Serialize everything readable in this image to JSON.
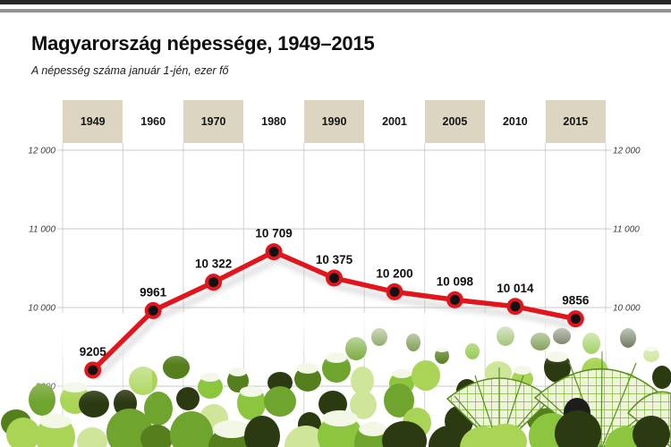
{
  "header": {
    "title": "Magyarország népessége, 1949–2015",
    "subtitle": "A népesség száma január 1-jén, ezer fő"
  },
  "chart_data": {
    "type": "line",
    "title": "Magyarország népessége, 1949–2015",
    "subtitle": "A népesség száma január 1-jén, ezer fő",
    "categories": [
      "1949",
      "1960",
      "1970",
      "1980",
      "1990",
      "2001",
      "2005",
      "2010",
      "2015"
    ],
    "values": [
      9205,
      9961,
      10322,
      10709,
      10375,
      10200,
      10098,
      10014,
      9856
    ],
    "value_labels": [
      "9205",
      "9961",
      "10 322",
      "10 709",
      "10 375",
      "10 200",
      "10 098",
      "10 014",
      "9856"
    ],
    "unit": "ezer fő",
    "ylim": [
      9000,
      12000
    ],
    "grid": true,
    "y_ticks": [
      {
        "value": 12000,
        "label": "12 000",
        "left": true,
        "right": true
      },
      {
        "value": 11000,
        "label": "11 000",
        "left": true,
        "right": true
      },
      {
        "value": 10000,
        "label": "10 000",
        "left": true,
        "right": true
      },
      {
        "value": 9000,
        "label": "9000",
        "left": true,
        "right": false
      }
    ],
    "colors": {
      "line": "#e2141c",
      "marker_center": "#121212",
      "column_header_fill": "#dbd5c2",
      "gridline": "#c9c9c9",
      "tick_text": "#3a3a3a",
      "value_label_text": "#0f0f0f"
    }
  }
}
